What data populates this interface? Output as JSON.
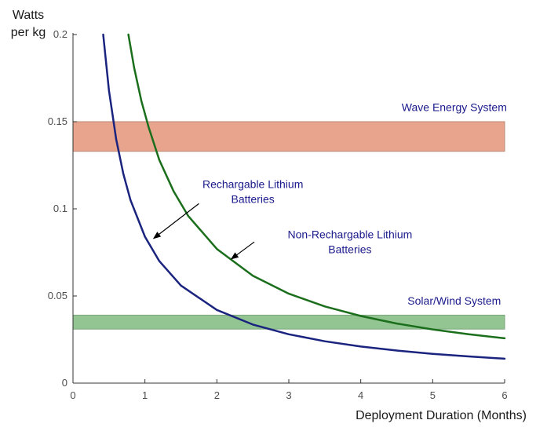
{
  "chart_data": {
    "type": "line",
    "title": "",
    "xlabel": "Deployment Duration (Months)",
    "ylabel_lines": [
      "Watts",
      "per kg"
    ],
    "xlim": [
      0,
      6
    ],
    "ylim": [
      0,
      0.2
    ],
    "x_ticks": [
      0,
      1,
      2,
      3,
      4,
      5,
      6
    ],
    "y_ticks": [
      0,
      0.05,
      0.1,
      0.15,
      0.2
    ],
    "x_tick_labels": [
      "0",
      "1",
      "2",
      "3",
      "4",
      "5",
      "6"
    ],
    "y_tick_labels": [
      "0",
      "0.05",
      "0.1",
      "0.15",
      "0.2"
    ],
    "grid": false,
    "legend": "none",
    "series": [
      {
        "label": "Rechargable Lithium Batteries",
        "color": "#1a237e",
        "x": [
          0.42,
          0.5,
          0.6,
          0.7,
          0.8,
          1.0,
          1.2,
          1.5,
          2.0,
          2.5,
          3.0,
          3.5,
          4.0,
          4.5,
          5.0,
          5.5,
          6.0
        ],
        "y": [
          0.2,
          0.168,
          0.14,
          0.12,
          0.105,
          0.084,
          0.07,
          0.056,
          0.042,
          0.0336,
          0.028,
          0.024,
          0.021,
          0.0187,
          0.0168,
          0.0153,
          0.014
        ]
      },
      {
        "label": "Non-Rechargable Lithium Batteries",
        "color": "#1b6e1b",
        "x": [
          0.77,
          0.85,
          0.95,
          1.05,
          1.2,
          1.4,
          1.6,
          2.0,
          2.5,
          3.0,
          3.5,
          4.0,
          4.5,
          5.0,
          5.5,
          6.0
        ],
        "y": [
          0.2,
          0.181,
          0.162,
          0.147,
          0.128,
          0.11,
          0.096,
          0.077,
          0.0616,
          0.0513,
          0.044,
          0.0385,
          0.0342,
          0.0308,
          0.028,
          0.0257
        ]
      }
    ],
    "bands": [
      {
        "label": "Wave Energy System",
        "y_range": [
          0.133,
          0.15
        ],
        "x_range": [
          0,
          6
        ],
        "fill": "#e8a48c",
        "stroke": "#b88878"
      },
      {
        "label": "Solar/Wind System",
        "y_range": [
          0.031,
          0.039
        ],
        "x_range": [
          0,
          6
        ],
        "fill": "#93c593",
        "stroke": "#7aa57a"
      }
    ],
    "annotations": [
      {
        "text_lines": [
          "Rechargable Lithium",
          "Batteries"
        ],
        "text_at": [
          2.5,
          0.112
        ],
        "arrow_from": [
          1.75,
          0.103
        ],
        "arrow_to": [
          1.12,
          0.083
        ]
      },
      {
        "text_lines": [
          "Non-Rechargable Lithium",
          "Batteries"
        ],
        "text_at": [
          3.85,
          0.083
        ],
        "arrow_from": [
          2.52,
          0.081
        ],
        "arrow_to": [
          2.2,
          0.0712
        ]
      }
    ],
    "band_label_positions": [
      [
        5.3,
        0.156
      ],
      [
        5.3,
        0.045
      ]
    ]
  }
}
